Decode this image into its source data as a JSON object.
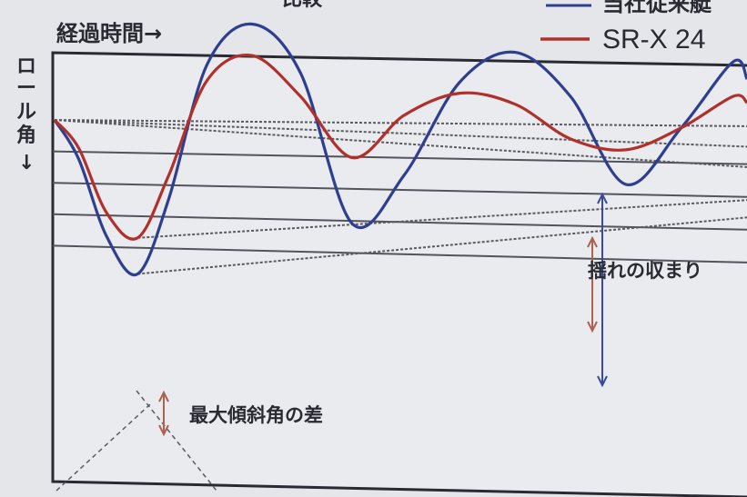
{
  "header": {
    "top_left_fragment": "比較",
    "x_axis_caption": "経過時間→",
    "y_axis_caption": [
      "ロ",
      "ー",
      "ル",
      "角",
      "↓"
    ]
  },
  "legend": {
    "position": "top-right",
    "items": [
      {
        "label": "当社従来艇",
        "color": "#2e3f8f"
      },
      {
        "label": "SR-X 24",
        "color": "#b0302c"
      }
    ]
  },
  "annotations": {
    "damping": "揺れの収まり",
    "max_tilt_diff": "最大傾斜角の差"
  },
  "colors": {
    "background": "#e4e6e9",
    "plot_bg": "#e9ebee",
    "frame": "#2a2a33",
    "grid": "#52535c",
    "envelope": "#5a5a60",
    "arrow_blue": "#3a4a9a",
    "arrow_red": "#b06050"
  },
  "chart_data": {
    "type": "line",
    "title": "",
    "xlabel": "経過時間→",
    "ylabel": "ロール角↓",
    "ticks": "none",
    "grid": "horizontal",
    "xlim": [
      0,
      10
    ],
    "ylim": [
      -10,
      10
    ],
    "series": [
      {
        "name": "当社従来艇",
        "color": "#2e3f8f",
        "x": [
          0,
          0.35,
          0.75,
          1.2,
          1.65,
          2.2,
          2.85,
          3.55,
          4.3,
          5.05,
          5.85,
          6.65,
          7.45,
          8.25,
          9.05,
          9.8,
          10
        ],
        "y": [
          0,
          -2.5,
          -7.4,
          -9.8,
          -5.0,
          3.5,
          6.1,
          3.0,
          -6.6,
          -3.5,
          2.4,
          4.3,
          1.5,
          -4.1,
          -0.5,
          3.7,
          2.6
        ]
      },
      {
        "name": "SR-X 24",
        "color": "#b0302c",
        "x": [
          0,
          0.35,
          0.75,
          1.2,
          1.65,
          2.2,
          2.85,
          3.55,
          4.3,
          5.05,
          5.85,
          6.65,
          7.45,
          8.25,
          9.05,
          9.8,
          10
        ],
        "y": [
          0,
          -1.8,
          -5.9,
          -7.5,
          -3.5,
          2.5,
          4.1,
          1.5,
          -2.4,
          0.3,
          1.7,
          1.0,
          -1.2,
          -1.9,
          -0.5,
          1.5,
          1.1
        ]
      }
    ],
    "reference_lines": [
      {
        "x": [
          0,
          10
        ],
        "y": [
          0,
          -0.4
        ]
      },
      {
        "x": [
          0,
          10
        ],
        "y": [
          0,
          -1.7
        ]
      },
      {
        "x": [
          0,
          10
        ],
        "y": [
          0,
          -3.0
        ]
      },
      {
        "x": [
          1.2,
          10
        ],
        "y": [
          -7.5,
          -5.1
        ]
      },
      {
        "x": [
          1.2,
          10
        ],
        "y": [
          -9.8,
          -6.2
        ]
      }
    ],
    "grid_lines_y": [
      -2.0,
      -4.0,
      -6.0,
      -8.0
    ]
  }
}
